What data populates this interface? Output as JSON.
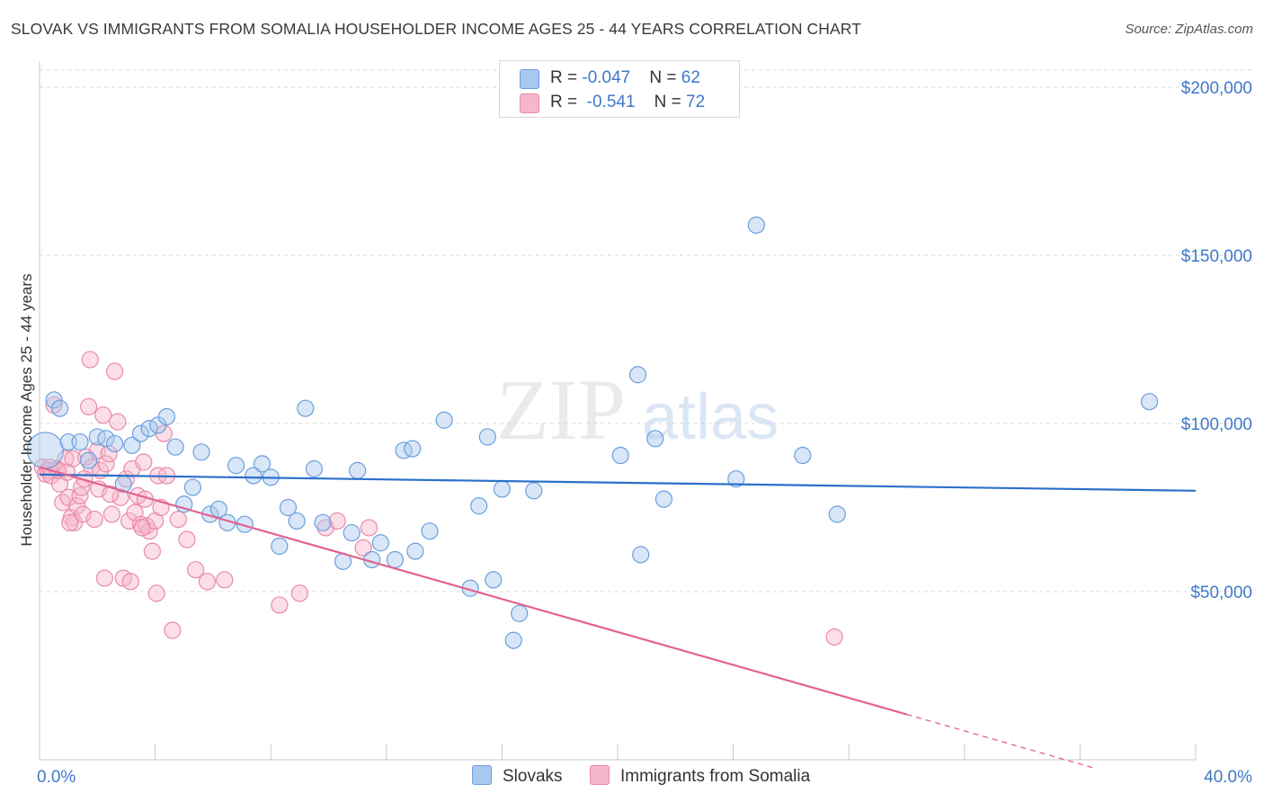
{
  "title": "SLOVAK VS IMMIGRANTS FROM SOMALIA HOUSEHOLDER INCOME AGES 25 - 44 YEARS CORRELATION CHART",
  "source": "Source: ZipAtlas.com",
  "watermark": {
    "zip": "ZIP",
    "atlas": "atlas"
  },
  "legend": {
    "rows": [
      {
        "r_label": "R = ",
        "r_value": "-0.047",
        "n_label": "N = ",
        "n_value": "62"
      },
      {
        "r_label": "R = ",
        "r_value": "-0.541",
        "n_label": "N = ",
        "n_value": "72"
      }
    ]
  },
  "bottom_legend": {
    "series1": "Slovaks",
    "series2": "Immigrants from Somalia"
  },
  "colors": {
    "blue_fill": "#a8c8ef",
    "blue_stroke": "#6b9fdc",
    "blue_line": "#2b70c9",
    "pink_fill": "#f6b6cb",
    "pink_stroke": "#e98aa8",
    "pink_line": "#e2628f",
    "axis_label": "#3f78c8",
    "grid": "#d9d9d9"
  },
  "chart_data": {
    "type": "scatter",
    "title": "SLOVAK VS IMMIGRANTS FROM SOMALIA HOUSEHOLDER INCOME AGES 25 - 44 YEARS CORRELATION CHART",
    "xlabel": "",
    "ylabel": "Householder Income Ages 25 - 44 years",
    "xlim": [
      0,
      40
    ],
    "ylim": [
      0,
      210000
    ],
    "x_tick_labels": [
      "0.0%",
      "40.0%"
    ],
    "y_ticks": [
      50000,
      100000,
      150000,
      200000
    ],
    "y_tick_labels": [
      "$50,000",
      "$100,000",
      "$150,000",
      "$200,000"
    ],
    "grid": true,
    "series": [
      {
        "name": "Slovaks",
        "R": -0.047,
        "N": 62,
        "trend": {
          "x": [
            0,
            40
          ],
          "y": [
            84800,
            80000
          ]
        },
        "points": [
          {
            "x": 0.2,
            "y": 92000,
            "big": true
          },
          {
            "x": 0.5,
            "y": 107000
          },
          {
            "x": 0.7,
            "y": 104500
          },
          {
            "x": 1.0,
            "y": 94500
          },
          {
            "x": 1.4,
            "y": 94500
          },
          {
            "x": 1.7,
            "y": 89000
          },
          {
            "x": 2.0,
            "y": 96000
          },
          {
            "x": 2.3,
            "y": 95500
          },
          {
            "x": 2.6,
            "y": 94000
          },
          {
            "x": 2.9,
            "y": 82000
          },
          {
            "x": 3.2,
            "y": 93500
          },
          {
            "x": 3.5,
            "y": 97000
          },
          {
            "x": 3.8,
            "y": 98500
          },
          {
            "x": 4.1,
            "y": 99500
          },
          {
            "x": 4.4,
            "y": 102000
          },
          {
            "x": 4.7,
            "y": 93000
          },
          {
            "x": 5.0,
            "y": 76000
          },
          {
            "x": 5.3,
            "y": 81000
          },
          {
            "x": 5.6,
            "y": 91500
          },
          {
            "x": 5.9,
            "y": 73000
          },
          {
            "x": 6.2,
            "y": 74500
          },
          {
            "x": 6.5,
            "y": 70500
          },
          {
            "x": 6.8,
            "y": 87500
          },
          {
            "x": 7.1,
            "y": 70000
          },
          {
            "x": 7.4,
            "y": 84500
          },
          {
            "x": 7.7,
            "y": 88000
          },
          {
            "x": 8.0,
            "y": 84000
          },
          {
            "x": 8.3,
            "y": 63500
          },
          {
            "x": 8.6,
            "y": 75000
          },
          {
            "x": 8.9,
            "y": 71000
          },
          {
            "x": 9.2,
            "y": 104500
          },
          {
            "x": 9.5,
            "y": 86500
          },
          {
            "x": 9.8,
            "y": 70500
          },
          {
            "x": 10.5,
            "y": 59000
          },
          {
            "x": 10.8,
            "y": 67500
          },
          {
            "x": 11.0,
            "y": 86000
          },
          {
            "x": 11.5,
            "y": 59500
          },
          {
            "x": 11.8,
            "y": 64500
          },
          {
            "x": 12.3,
            "y": 59500
          },
          {
            "x": 12.6,
            "y": 92000
          },
          {
            "x": 12.9,
            "y": 92500
          },
          {
            "x": 13.0,
            "y": 62000
          },
          {
            "x": 13.5,
            "y": 68000
          },
          {
            "x": 14.0,
            "y": 101000
          },
          {
            "x": 14.9,
            "y": 51000
          },
          {
            "x": 15.2,
            "y": 75500
          },
          {
            "x": 15.5,
            "y": 96000
          },
          {
            "x": 15.7,
            "y": 53500
          },
          {
            "x": 16.0,
            "y": 80500
          },
          {
            "x": 16.4,
            "y": 35500
          },
          {
            "x": 16.6,
            "y": 43500
          },
          {
            "x": 17.1,
            "y": 80000
          },
          {
            "x": 20.1,
            "y": 90500
          },
          {
            "x": 20.7,
            "y": 114500
          },
          {
            "x": 20.8,
            "y": 61000
          },
          {
            "x": 21.3,
            "y": 95500
          },
          {
            "x": 21.6,
            "y": 77500
          },
          {
            "x": 24.1,
            "y": 83500
          },
          {
            "x": 24.8,
            "y": 159000
          },
          {
            "x": 26.4,
            "y": 90500
          },
          {
            "x": 27.6,
            "y": 73000
          },
          {
            "x": 38.4,
            "y": 106500
          }
        ]
      },
      {
        "name": "Immigrants from Somalia",
        "R": -0.541,
        "N": 72,
        "trend": {
          "x": [
            0,
            30.0
          ],
          "y": [
            87000,
            13500
          ]
        },
        "trend_dashed": {
          "x": [
            30.0,
            36.5
          ],
          "y": [
            13500,
            -2500
          ]
        },
        "points": [
          {
            "x": 0.1,
            "y": 87000
          },
          {
            "x": 0.2,
            "y": 85000
          },
          {
            "x": 0.3,
            "y": 86000
          },
          {
            "x": 0.4,
            "y": 84500
          },
          {
            "x": 0.5,
            "y": 105500
          },
          {
            "x": 0.6,
            "y": 86500
          },
          {
            "x": 0.7,
            "y": 82000
          },
          {
            "x": 0.8,
            "y": 76500
          },
          {
            "x": 0.9,
            "y": 89500
          },
          {
            "x": 1.0,
            "y": 78000
          },
          {
            "x": 1.1,
            "y": 72000
          },
          {
            "x": 1.2,
            "y": 70500
          },
          {
            "x": 1.3,
            "y": 75500
          },
          {
            "x": 1.4,
            "y": 78500
          },
          {
            "x": 1.5,
            "y": 73000
          },
          {
            "x": 1.6,
            "y": 90000
          },
          {
            "x": 1.7,
            "y": 105000
          },
          {
            "x": 1.8,
            "y": 87000
          },
          {
            "x": 1.9,
            "y": 71500
          },
          {
            "x": 1.75,
            "y": 119000
          },
          {
            "x": 2.0,
            "y": 92000
          },
          {
            "x": 2.1,
            "y": 86000
          },
          {
            "x": 2.2,
            "y": 102500
          },
          {
            "x": 2.3,
            "y": 88000
          },
          {
            "x": 2.4,
            "y": 91000
          },
          {
            "x": 2.5,
            "y": 73000
          },
          {
            "x": 2.6,
            "y": 115500
          },
          {
            "x": 2.7,
            "y": 100500
          },
          {
            "x": 2.8,
            "y": 78000
          },
          {
            "x": 2.9,
            "y": 54000
          },
          {
            "x": 3.0,
            "y": 83500
          },
          {
            "x": 3.1,
            "y": 71000
          },
          {
            "x": 3.2,
            "y": 86500
          },
          {
            "x": 3.3,
            "y": 73500
          },
          {
            "x": 3.4,
            "y": 78500
          },
          {
            "x": 3.5,
            "y": 70000
          },
          {
            "x": 3.6,
            "y": 88500
          },
          {
            "x": 3.7,
            "y": 69500
          },
          {
            "x": 3.8,
            "y": 68000
          },
          {
            "x": 3.9,
            "y": 62000
          },
          {
            "x": 4.0,
            "y": 71000
          },
          {
            "x": 4.1,
            "y": 84500
          },
          {
            "x": 4.2,
            "y": 75000
          },
          {
            "x": 4.3,
            "y": 97000
          },
          {
            "x": 4.4,
            "y": 84500
          },
          {
            "x": 4.6,
            "y": 38500
          },
          {
            "x": 4.8,
            "y": 71500
          },
          {
            "x": 5.1,
            "y": 65500
          },
          {
            "x": 5.4,
            "y": 56500
          },
          {
            "x": 5.8,
            "y": 53000
          },
          {
            "x": 6.4,
            "y": 53500
          },
          {
            "x": 8.3,
            "y": 46000
          },
          {
            "x": 9.0,
            "y": 49500
          },
          {
            "x": 9.9,
            "y": 69000
          },
          {
            "x": 11.2,
            "y": 63000
          },
          {
            "x": 11.4,
            "y": 69000
          },
          {
            "x": 27.5,
            "y": 36500
          },
          {
            "x": 2.25,
            "y": 54000
          },
          {
            "x": 3.15,
            "y": 53000
          },
          {
            "x": 4.05,
            "y": 49500
          },
          {
            "x": 1.45,
            "y": 81000
          },
          {
            "x": 1.15,
            "y": 89500
          },
          {
            "x": 2.05,
            "y": 80500
          },
          {
            "x": 3.55,
            "y": 69000
          },
          {
            "x": 0.65,
            "y": 86000
          },
          {
            "x": 0.35,
            "y": 87000
          },
          {
            "x": 0.95,
            "y": 85500
          },
          {
            "x": 1.55,
            "y": 83500
          },
          {
            "x": 1.05,
            "y": 70500
          },
          {
            "x": 2.45,
            "y": 79000
          },
          {
            "x": 3.65,
            "y": 77500
          },
          {
            "x": 10.3,
            "y": 71000
          }
        ]
      }
    ]
  }
}
